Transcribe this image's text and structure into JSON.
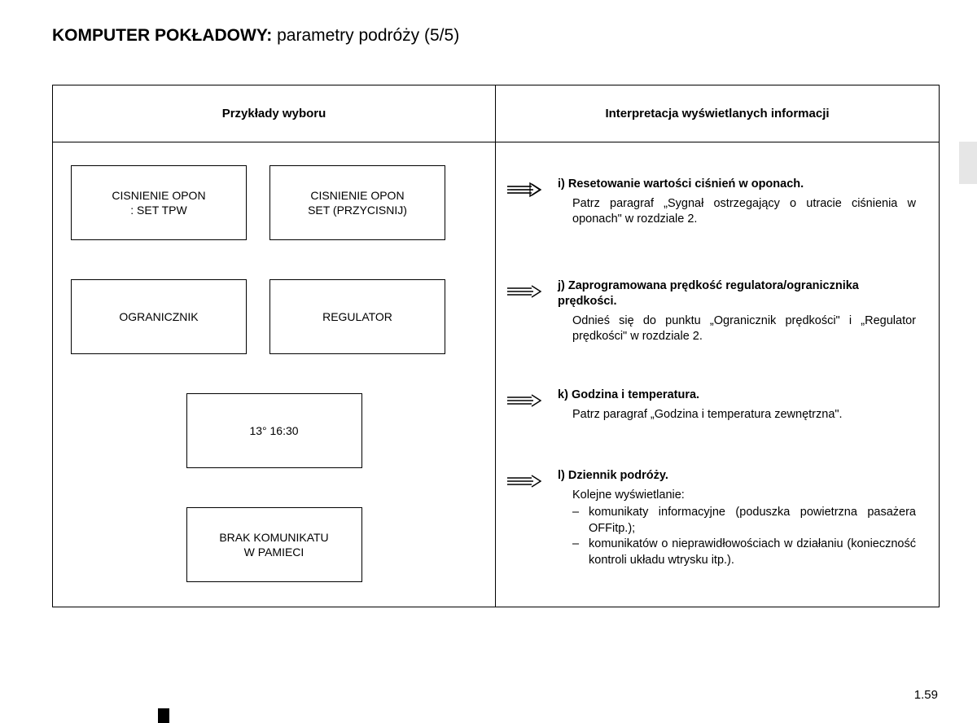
{
  "title": {
    "bold": "KOMPUTER POKŁADOWY:",
    "regular": " parametry podróży (5/5)"
  },
  "headers": {
    "left": "Przykłady wyboru",
    "right": "Interpretacja wyświetlanych informacji"
  },
  "boxes": {
    "r1b1": "CISNIENIE OPON\n: SET TPW",
    "r1b2": "CISNIENIE OPON\nSET (PRZYCISNIJ)",
    "r2b1": "OGRANICZNIK",
    "r2b2": "REGULATOR",
    "r3b1": "13° 16:30",
    "r4b1": "BRAK KOMUNIKATU\nW PAMIECI"
  },
  "items": {
    "i": {
      "letter": "i)",
      "title": "Resetowanie wartości ciśnień w oponach.",
      "body": "Patrz paragraf „Sygnał ostrzegający o utracie ciśnienia w oponach\" w rozdziale 2."
    },
    "j": {
      "letter": "j)",
      "title": "Zaprogramowana prędkość regulatora/ogranicznika prędkości.",
      "body": "Odnieś się do punktu „Ogranicznik prędkości\" i „Regulator prędkości\" w rozdziale 2."
    },
    "k": {
      "letter": "k)",
      "title": "Godzina i temperatura.",
      "body": "Patrz paragraf „Godzina i temperatura zewnętrzna\"."
    },
    "l": {
      "letter": "l)",
      "title": "Dziennik podróży.",
      "intro": "Kolejne wyświetlanie:",
      "li1": "komunikaty informacyjne (poduszka powietrzna pasażera OFFitp.);",
      "li2": "komunikatów o nieprawidłowościach w działaniu (konieczność kontroli układu wtrysku itp.)."
    }
  },
  "pageNumber": "1.59",
  "dash": "–"
}
